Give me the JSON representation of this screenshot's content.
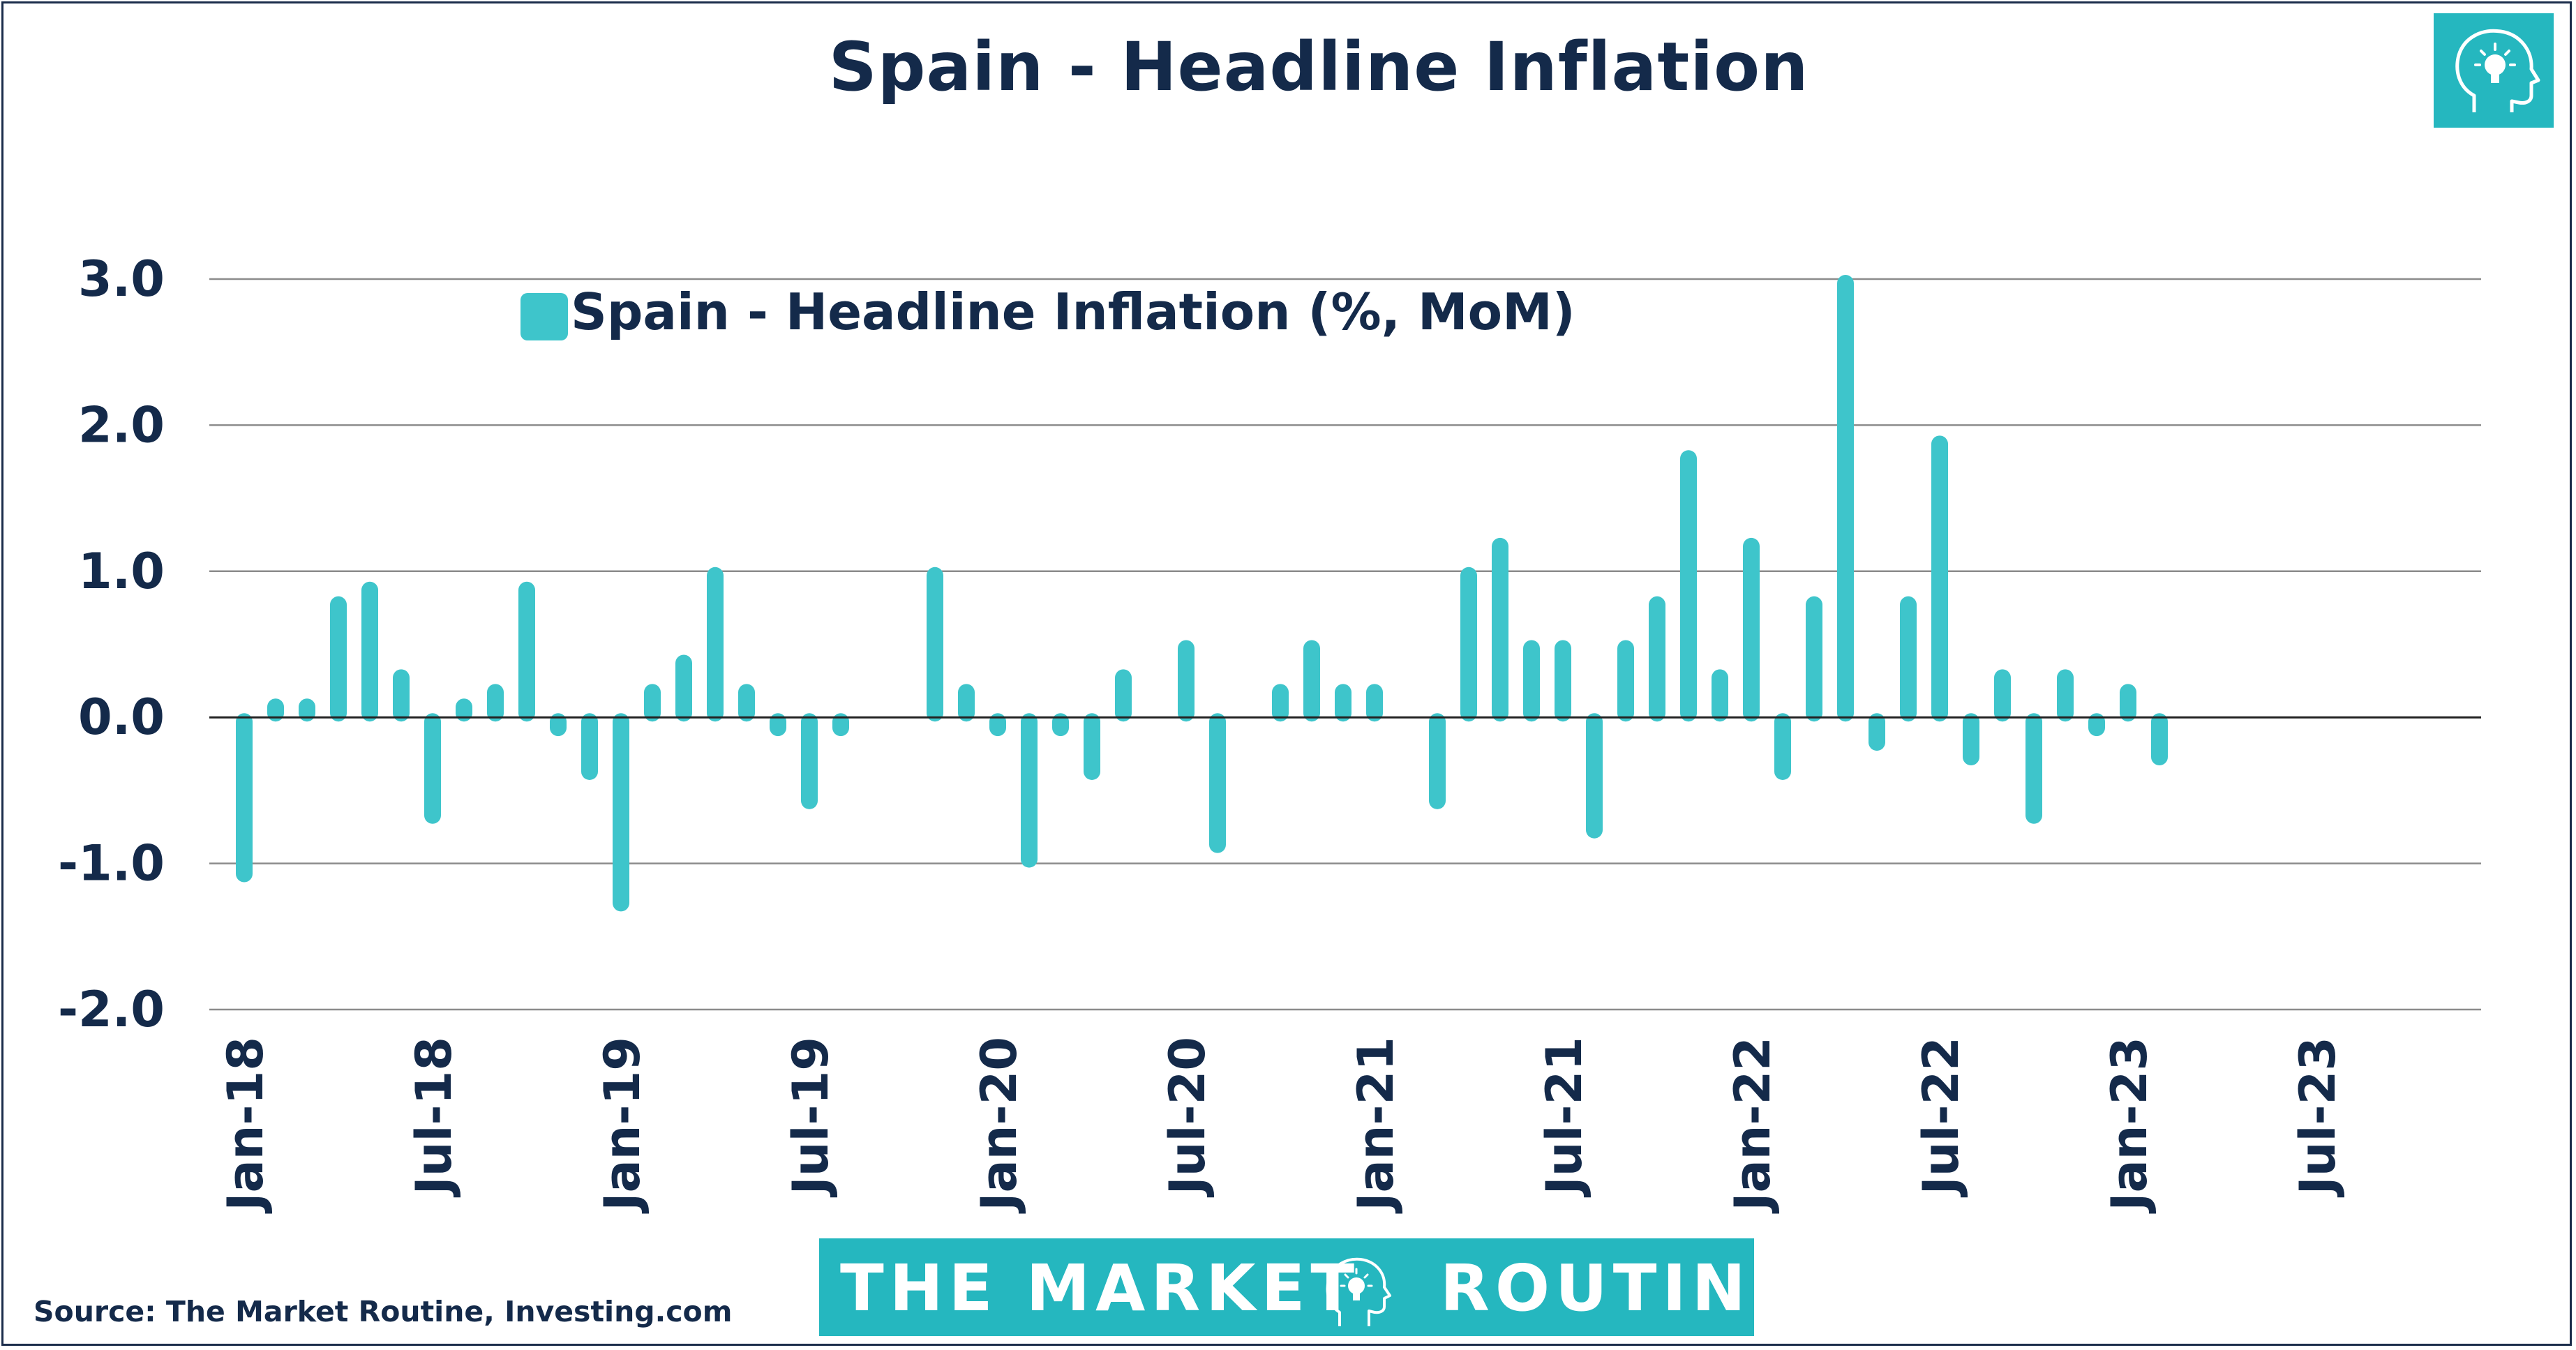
{
  "header": {
    "title": "Spain - Headline Inflation"
  },
  "footer": {
    "source": "Source: The Market Routine, Investing.com",
    "banner_left": "THE MARKET",
    "banner_right": "ROUTINE"
  },
  "icons": {
    "top_logo": "head-lightbulb-icon",
    "banner_logo": "head-lightbulb-icon"
  },
  "colors": {
    "bar": "#3ec5cb",
    "brand": "#25b7bf",
    "text": "#142a4a",
    "grid": "#8c8c8c"
  },
  "chart_data": {
    "type": "bar",
    "title": "Spain - Headline Inflation",
    "legend": {
      "entry": "Spain - Headline Inflation (%, MoM)",
      "position": "top-left"
    },
    "ylim": [
      -2.0,
      3.0
    ],
    "yticks": [
      "3.0",
      "2.0",
      "1.0",
      "0.0",
      "-1.0",
      "-2.0"
    ],
    "xticks": [
      "Jan-18",
      "Jul-18",
      "Jan-19",
      "Jul-19",
      "Jan-20",
      "Jul-20",
      "Jan-21",
      "Jul-21",
      "Jan-22",
      "Jul-22",
      "Jan-23",
      "Jul-23"
    ],
    "grid": true,
    "series": [
      {
        "name": "Spain - Headline Inflation (%, MoM)",
        "x": [
          "Jan-18",
          "Feb-18",
          "Mar-18",
          "Apr-18",
          "May-18",
          "Jun-18",
          "Jul-18",
          "Aug-18",
          "Sep-18",
          "Oct-18",
          "Nov-18",
          "Dec-18",
          "Jan-19",
          "Feb-19",
          "Mar-19",
          "Apr-19",
          "May-19",
          "Jun-19",
          "Jul-19",
          "Aug-19",
          "Sep-19",
          "Oct-19",
          "Nov-19",
          "Dec-19",
          "Jan-20",
          "Feb-20",
          "Mar-20",
          "Apr-20",
          "May-20",
          "Jun-20",
          "Jul-20",
          "Aug-20",
          "Sep-20",
          "Oct-20",
          "Nov-20",
          "Dec-20",
          "Jan-21",
          "Feb-21",
          "Mar-21",
          "Apr-21",
          "May-21",
          "Jun-21",
          "Jul-21",
          "Aug-21",
          "Sep-21",
          "Oct-21",
          "Nov-21",
          "Dec-21",
          "Jan-22",
          "Feb-22",
          "Mar-22",
          "Apr-22",
          "May-22",
          "Jun-22",
          "Jul-22",
          "Aug-22",
          "Sep-22",
          "Oct-22",
          "Nov-22",
          "Dec-22",
          "Jan-23",
          "Feb-23"
        ],
        "values": [
          -1.1,
          0.1,
          0.1,
          0.8,
          0.9,
          0.3,
          -0.7,
          0.1,
          0.2,
          0.9,
          -0.1,
          -0.4,
          -1.3,
          0.2,
          0.4,
          1.0,
          0.2,
          -0.1,
          -0.6,
          -0.1,
          0.0,
          0.0,
          1.0,
          0.2,
          -0.1,
          -1.0,
          -0.1,
          -0.4,
          0.3,
          0.0,
          0.5,
          -0.9,
          0.0,
          0.2,
          0.5,
          0.2,
          0.2,
          0.0,
          -0.6,
          1.0,
          1.2,
          0.5,
          0.5,
          -0.8,
          0.5,
          0.8,
          1.8,
          0.3,
          1.2,
          -0.4,
          0.8,
          3.0,
          -0.2,
          0.8,
          1.9,
          -0.3,
          0.3,
          -0.7,
          0.3,
          -0.1,
          0.2,
          -0.3
        ]
      }
    ]
  }
}
